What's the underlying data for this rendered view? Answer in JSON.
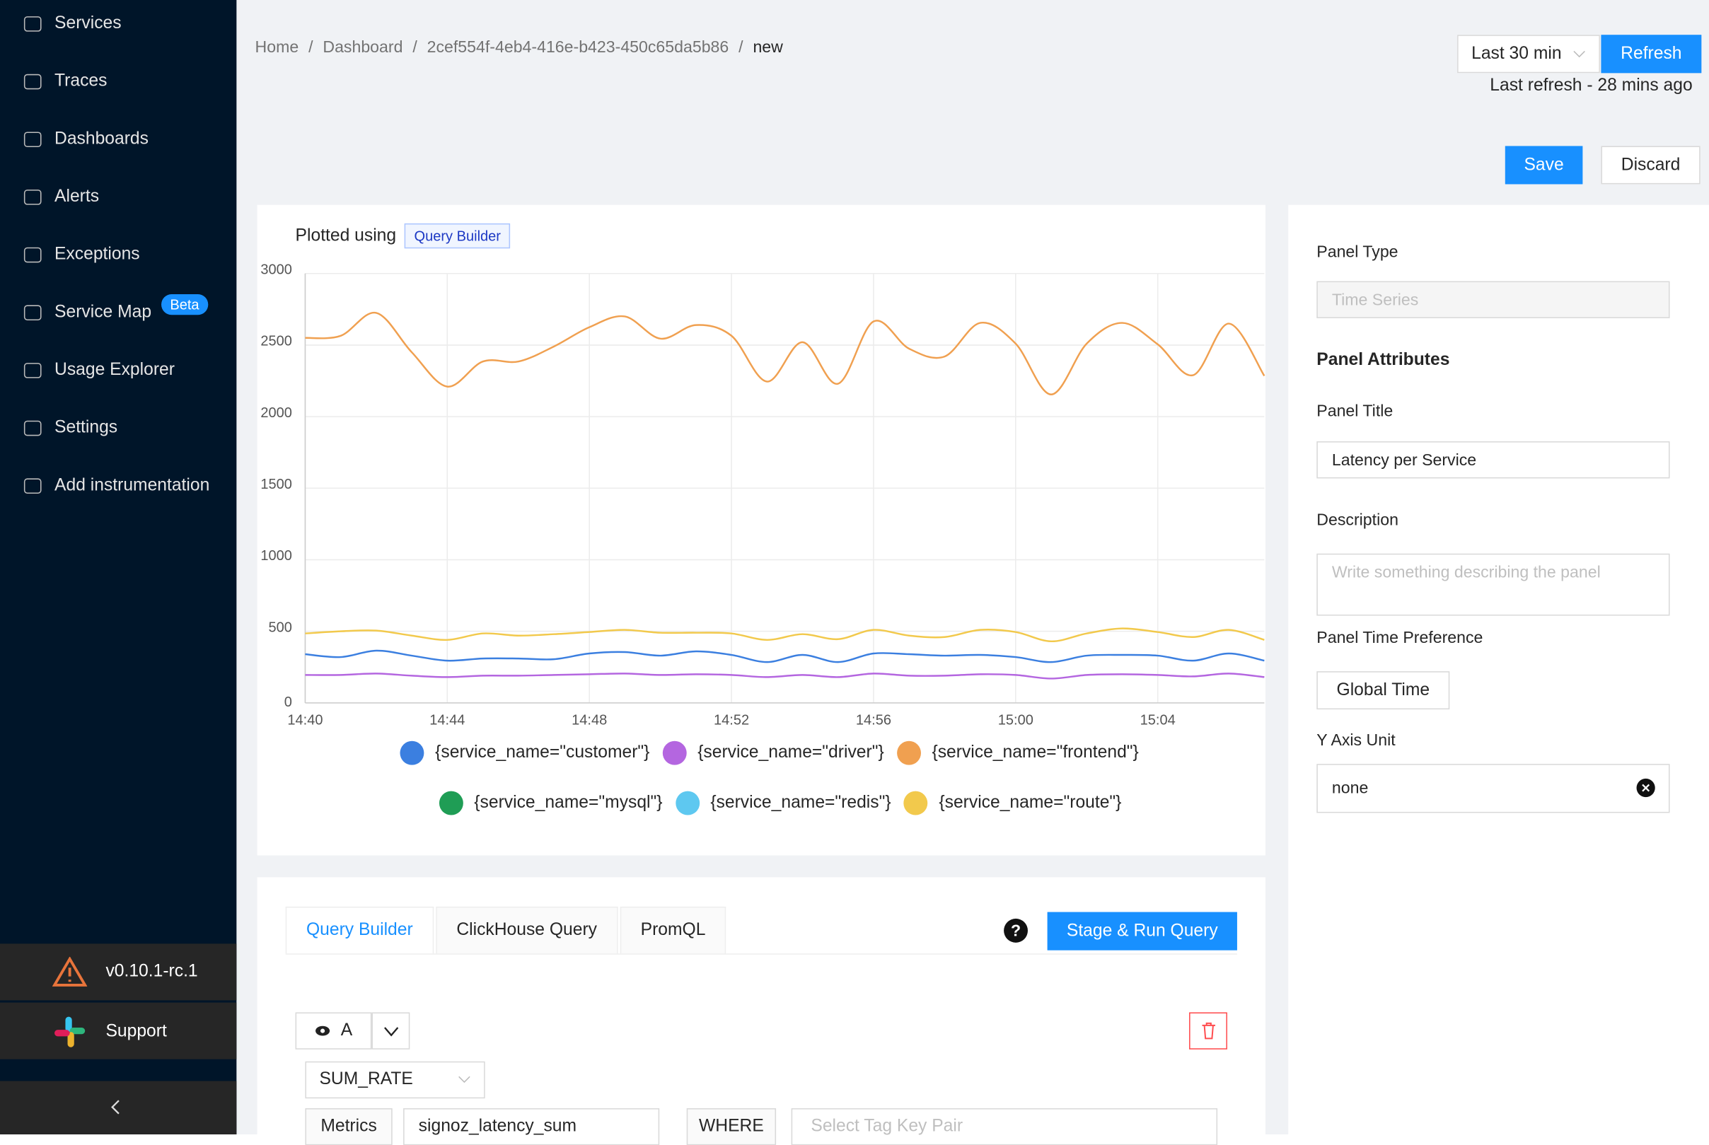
{
  "sidebar": {
    "items": [
      {
        "label": "Services"
      },
      {
        "label": "Traces"
      },
      {
        "label": "Dashboards"
      },
      {
        "label": "Alerts"
      },
      {
        "label": "Exceptions"
      },
      {
        "label": "Service Map",
        "badge": "Beta"
      },
      {
        "label": "Usage Explorer"
      },
      {
        "label": "Settings"
      },
      {
        "label": "Add instrumentation"
      }
    ],
    "version": "v0.10.1-rc.1",
    "support": "Support"
  },
  "breadcrumb": [
    "Home",
    "Dashboard",
    "2cef554f-4eb4-416e-b423-450c65da5b86",
    "new"
  ],
  "toolbar": {
    "time_range": "Last 30 min",
    "refresh": "Refresh",
    "last_refresh": "Last refresh - 28 mins ago",
    "save": "Save",
    "discard": "Discard"
  },
  "chart_panel": {
    "plotted_using": "Plotted using",
    "source_tag": "Query Builder"
  },
  "chart_data": {
    "type": "line",
    "x": [
      "14:40",
      "14:41",
      "14:42",
      "14:43",
      "14:44",
      "14:45",
      "14:46",
      "14:47",
      "14:48",
      "14:49",
      "14:50",
      "14:51",
      "14:52",
      "14:53",
      "14:54",
      "14:55",
      "14:56",
      "14:57",
      "14:58",
      "14:59",
      "15:00",
      "15:01",
      "15:02",
      "15:03",
      "15:04",
      "15:05",
      "15:06",
      "15:07"
    ],
    "xticks": [
      "14:40",
      "14:44",
      "14:48",
      "14:52",
      "14:56",
      "15:00",
      "15:04"
    ],
    "ylim": [
      0,
      3000
    ],
    "yticks": [
      0,
      500,
      1000,
      1500,
      2000,
      2500,
      3000
    ],
    "grid": true,
    "series": [
      {
        "name": "{service_name=\"customer\"}",
        "color": "#3b7fe0",
        "values": [
          340,
          320,
          365,
          330,
          295,
          310,
          310,
          305,
          345,
          355,
          330,
          360,
          335,
          285,
          335,
          285,
          345,
          340,
          330,
          335,
          320,
          285,
          330,
          335,
          330,
          295,
          345,
          295
        ]
      },
      {
        "name": "{service_name=\"driver\"}",
        "color": "#b466e0",
        "values": [
          195,
          195,
          205,
          190,
          180,
          190,
          190,
          195,
          200,
          205,
          195,
          200,
          195,
          180,
          195,
          180,
          205,
          190,
          190,
          200,
          195,
          170,
          195,
          200,
          195,
          185,
          205,
          180
        ]
      },
      {
        "name": "{service_name=\"frontend\"}",
        "color": "#f0a050",
        "values": [
          2550,
          2565,
          2725,
          2450,
          2210,
          2385,
          2385,
          2490,
          2625,
          2700,
          2545,
          2640,
          2565,
          2245,
          2520,
          2230,
          2665,
          2475,
          2420,
          2655,
          2510,
          2155,
          2510,
          2655,
          2505,
          2290,
          2650,
          2285
        ]
      },
      {
        "name": "{service_name=\"mysql\"}",
        "color": "#1f9d55",
        "values": [
          null,
          null,
          null,
          null,
          null,
          null,
          null,
          null,
          null,
          null,
          null,
          null,
          null,
          null,
          null,
          null,
          null,
          null,
          null,
          null,
          null,
          null,
          null,
          null,
          null,
          null,
          null,
          null
        ]
      },
      {
        "name": "{service_name=\"redis\"}",
        "color": "#5ec8f0",
        "values": [
          null,
          null,
          null,
          null,
          null,
          null,
          null,
          null,
          null,
          null,
          null,
          null,
          null,
          null,
          null,
          null,
          null,
          null,
          null,
          null,
          null,
          null,
          null,
          null,
          null,
          null,
          null,
          null
        ]
      },
      {
        "name": "{service_name=\"route\"}",
        "color": "#f2c94c",
        "values": [
          485,
          500,
          505,
          470,
          440,
          485,
          470,
          480,
          495,
          510,
          490,
          490,
          485,
          440,
          480,
          445,
          510,
          470,
          460,
          510,
          495,
          430,
          485,
          520,
          495,
          460,
          510,
          440
        ]
      }
    ]
  },
  "query_tabs": [
    "Query Builder",
    "ClickHouse Query",
    "PromQL"
  ],
  "stage_run": "Stage & Run Query",
  "query": {
    "name": "A",
    "aggregation": "SUM_RATE",
    "metrics_label": "Metrics",
    "metric": "signoz_latency_sum",
    "where": "WHERE",
    "tag_placeholder": "Select Tag Key Pair"
  },
  "settings": {
    "panel_type_label": "Panel Type",
    "panel_type": "Time Series",
    "attributes": "Panel Attributes",
    "title_label": "Panel Title",
    "title": "Latency per Service",
    "description_label": "Description",
    "description_placeholder": "Write something describing the  panel",
    "time_pref_label": "Panel Time Preference",
    "time_pref": "Global Time",
    "y_unit_label": "Y Axis Unit",
    "y_unit": "none"
  }
}
